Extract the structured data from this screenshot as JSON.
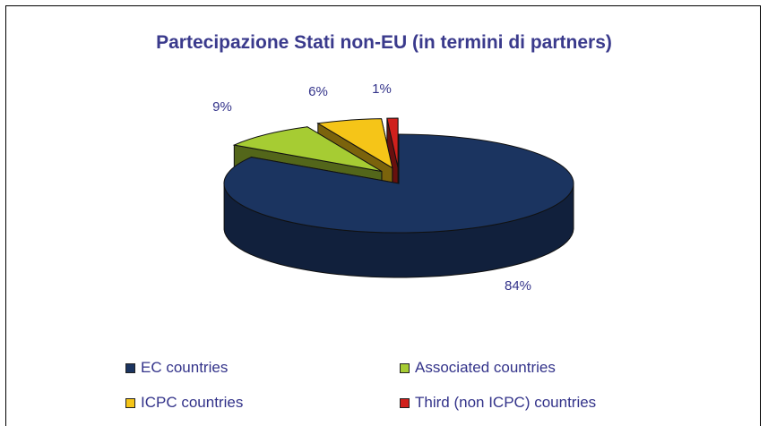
{
  "chart_data": {
    "type": "pie",
    "title": "Partecipazione Stati non-EU (in termini di partners)",
    "three_d": true,
    "legend_position": "bottom",
    "slices": [
      {
        "label": "EC countries",
        "value": 84,
        "value_label": "84%",
        "color": "#1b3460",
        "exploded": false
      },
      {
        "label": "Associated countries",
        "value": 9,
        "value_label": "9%",
        "color": "#a6cc33",
        "exploded": true
      },
      {
        "label": "ICPC countries",
        "value": 6,
        "value_label": "6%",
        "color": "#f5c518",
        "exploded": true
      },
      {
        "label": "Third (non ICPC) countries",
        "value": 1,
        "value_label": "1%",
        "color": "#d0201c",
        "exploded": true
      }
    ]
  }
}
